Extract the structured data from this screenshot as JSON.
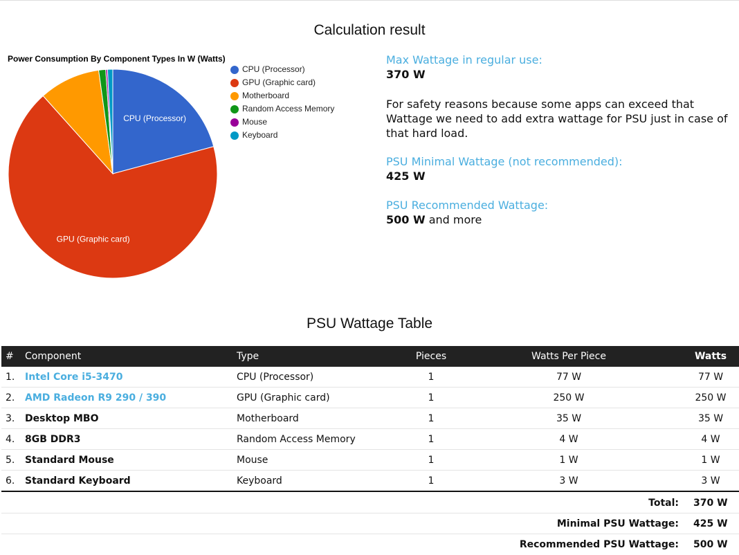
{
  "title": "Calculation result",
  "chart_data": {
    "type": "pie",
    "title": "Power Consumption By Component Types In W (Watts)",
    "categories": [
      "CPU (Processor)",
      "GPU (Graphic card)",
      "Motherboard",
      "Random Access Memory",
      "Mouse",
      "Keyboard"
    ],
    "values": [
      77,
      250,
      35,
      4,
      1,
      3
    ],
    "colors": [
      "#3366cc",
      "#dc3912",
      "#ff9900",
      "#109618",
      "#990099",
      "#0099c6"
    ],
    "legend": "right"
  },
  "info": {
    "max_label": "Max Wattage in regular use:",
    "max_value": "370 W",
    "note": "For safety reasons because some apps can exceed that Wattage we need to add extra wattage for PSU just in case of that hard load.",
    "min_label": "PSU Minimal Wattage (not recommended):",
    "min_value": "425 W",
    "rec_label": "PSU Recommended Wattage:",
    "rec_value": "500 W",
    "rec_suffix": "and more"
  },
  "table_title": "PSU Wattage Table",
  "table": {
    "columns": [
      "#",
      "Component",
      "Type",
      "Pieces",
      "Watts Per Piece",
      "Watts"
    ],
    "rows": [
      [
        "1.",
        "Intel Core i5-3470",
        "CPU (Processor)",
        "1",
        "77 W",
        "77 W"
      ],
      [
        "2.",
        "AMD Radeon R9 290 / 390",
        "GPU (Graphic card)",
        "1",
        "250 W",
        "250 W"
      ],
      [
        "3.",
        "Desktop MBO",
        "Motherboard",
        "1",
        "35 W",
        "35 W"
      ],
      [
        "4.",
        "8GB DDR3",
        "Random Access Memory",
        "1",
        "4 W",
        "4 W"
      ],
      [
        "5.",
        "Standard Mouse",
        "Mouse",
        "1",
        "1 W",
        "1 W"
      ],
      [
        "6.",
        "Standard Keyboard",
        "Keyboard",
        "1",
        "3 W",
        "3 W"
      ]
    ],
    "links": [
      true,
      true,
      false,
      false,
      false,
      false
    ]
  },
  "totals": [
    {
      "label": "Total:",
      "value": "370 W"
    },
    {
      "label": "Minimal PSU Wattage:",
      "value": "425 W"
    },
    {
      "label": "Recommended PSU Wattage:",
      "value": "500 W"
    }
  ]
}
